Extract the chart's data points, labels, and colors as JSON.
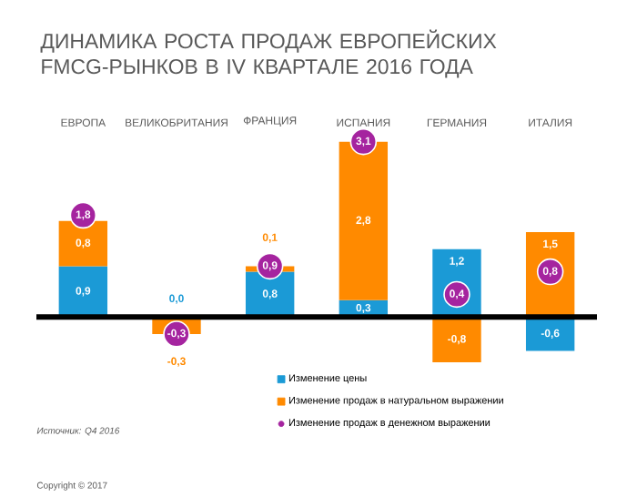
{
  "chart_data": {
    "type": "bar",
    "stacked": true,
    "title": "ДИНАМИКА РОСТА ПРОДАЖ ЕВРОПЕЙСКИХ FMCG-РЫНКОВ В IV КВАРТАЛЕ 2016 ГОДА",
    "categories": [
      "ЕВРОПА",
      "ВЕЛИКОБРИТАНИЯ",
      "ФРАНЦИЯ",
      "ИСПАНИЯ",
      "ГЕРМАНИЯ",
      "ИТАЛИЯ"
    ],
    "series": [
      {
        "name": "Изменение цены",
        "color": "#1b9ad6",
        "values": [
          0.9,
          0.0,
          0.8,
          0.3,
          1.2,
          -0.6
        ],
        "value_labels": [
          "0,9",
          "0,0",
          "0,8",
          "0,3",
          "1,2",
          "-0,6"
        ]
      },
      {
        "name": "Изменение продаж в натуральном выражении",
        "color": "#ff8a00",
        "values": [
          0.8,
          -0.3,
          0.1,
          2.8,
          -0.8,
          1.5
        ],
        "value_labels": [
          "0,8",
          "-0,3",
          "0,1",
          "2,8",
          "-0,8",
          "1,5"
        ]
      },
      {
        "name": "Изменение продаж в денежном выражении",
        "type": "scatter",
        "color": "#a5249f",
        "x": [
          "ЕВРОПА",
          "ВЕЛИКОБРИТАНИЯ",
          "ФРАНЦИЯ",
          "ИСПАНИЯ",
          "ГЕРМАНИЯ",
          "ИТАЛИЯ"
        ],
        "values": [
          1.8,
          -0.3,
          0.9,
          3.1,
          0.4,
          0.8
        ],
        "value_labels": [
          "1,8",
          "-0,3",
          "0,9",
          "3,1",
          "0,4",
          "0,8"
        ]
      }
    ],
    "tick_labels": "x",
    "legend": "bottom",
    "annotations": [
      "Источник: Q4 2016",
      "Copyright © 2017"
    ]
  }
}
